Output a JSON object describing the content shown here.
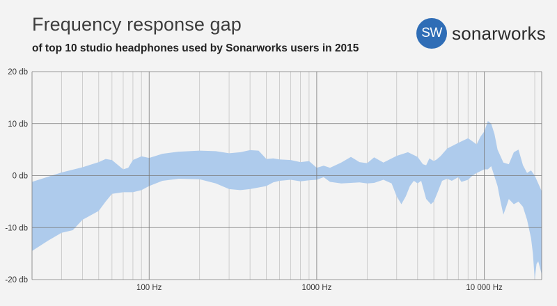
{
  "header": {
    "title": "Frequency response gap",
    "subtitle": "of top 10 studio headphones used by Sonarworks users in 2015"
  },
  "logo": {
    "badge_text": "SW",
    "wordmark": "sonarworks",
    "badge_color": "#2f6db6"
  },
  "chart_data": {
    "type": "area",
    "title": "Frequency response gap",
    "subtitle": "of top 10 studio headphones used by Sonarworks users in 2015",
    "xscale": "log",
    "xlim": [
      20,
      22000
    ],
    "ylim": [
      -20,
      20
    ],
    "grid": true,
    "fill_color": "#aecbec",
    "y_ticks": [
      {
        "value": 20,
        "label": "20 db"
      },
      {
        "value": 10,
        "label": "10 db"
      },
      {
        "value": 0,
        "label": "0 db"
      },
      {
        "value": -10,
        "label": "-10 db"
      },
      {
        "value": -20,
        "label": "-20 db"
      }
    ],
    "x_ticks": [
      {
        "value": 100,
        "label": "100 Hz"
      },
      {
        "value": 1000,
        "label": "1000 Hz"
      },
      {
        "value": 10000,
        "label": "10 000 Hz"
      }
    ],
    "series": [
      {
        "values_upper": [
          [
            20,
            -1.2
          ],
          [
            30,
            0.6
          ],
          [
            40,
            1.6
          ],
          [
            50,
            2.6
          ],
          [
            55,
            3.2
          ],
          [
            60,
            3.0
          ],
          [
            70,
            1.2
          ],
          [
            75,
            1.5
          ],
          [
            80,
            3.0
          ],
          [
            90,
            3.7
          ],
          [
            100,
            3.4
          ],
          [
            120,
            4.2
          ],
          [
            150,
            4.6
          ],
          [
            200,
            4.8
          ],
          [
            250,
            4.7
          ],
          [
            300,
            4.3
          ],
          [
            350,
            4.5
          ],
          [
            400,
            4.9
          ],
          [
            450,
            4.8
          ],
          [
            500,
            3.2
          ],
          [
            550,
            3.3
          ],
          [
            600,
            3.1
          ],
          [
            700,
            3.0
          ],
          [
            800,
            2.6
          ],
          [
            900,
            2.8
          ],
          [
            1000,
            1.5
          ],
          [
            1100,
            1.9
          ],
          [
            1200,
            1.5
          ],
          [
            1400,
            2.5
          ],
          [
            1600,
            3.6
          ],
          [
            1800,
            2.6
          ],
          [
            2000,
            2.4
          ],
          [
            2200,
            3.5
          ],
          [
            2500,
            2.5
          ],
          [
            3000,
            3.8
          ],
          [
            3500,
            4.5
          ],
          [
            4000,
            3.6
          ],
          [
            4300,
            2.2
          ],
          [
            4500,
            2.0
          ],
          [
            4700,
            3.3
          ],
          [
            5000,
            2.8
          ],
          [
            5200,
            3.1
          ],
          [
            5500,
            3.8
          ],
          [
            6000,
            5.2
          ],
          [
            7000,
            6.3
          ],
          [
            8000,
            7.2
          ],
          [
            9000,
            6.0
          ],
          [
            9500,
            7.5
          ],
          [
            10000,
            8.5
          ],
          [
            10500,
            10.5
          ],
          [
            11000,
            10.0
          ],
          [
            11500,
            8.0
          ],
          [
            12000,
            5.0
          ],
          [
            13000,
            2.5
          ],
          [
            14000,
            2.2
          ],
          [
            15000,
            4.5
          ],
          [
            16000,
            5.0
          ],
          [
            17000,
            2.0
          ],
          [
            18000,
            0.5
          ],
          [
            19000,
            1.0
          ],
          [
            20000,
            0.0
          ],
          [
            22000,
            -3.0
          ]
        ],
        "values_lower": [
          [
            20,
            -14.5
          ],
          [
            25,
            -12.5
          ],
          [
            30,
            -11.0
          ],
          [
            35,
            -10.5
          ],
          [
            40,
            -8.5
          ],
          [
            50,
            -6.8
          ],
          [
            55,
            -5.0
          ],
          [
            60,
            -3.5
          ],
          [
            70,
            -3.2
          ],
          [
            80,
            -3.2
          ],
          [
            90,
            -2.8
          ],
          [
            100,
            -2.0
          ],
          [
            120,
            -1.0
          ],
          [
            150,
            -0.6
          ],
          [
            200,
            -0.7
          ],
          [
            250,
            -1.5
          ],
          [
            300,
            -2.6
          ],
          [
            350,
            -2.8
          ],
          [
            400,
            -2.6
          ],
          [
            500,
            -2.0
          ],
          [
            550,
            -1.3
          ],
          [
            600,
            -1.0
          ],
          [
            700,
            -0.8
          ],
          [
            800,
            -1.1
          ],
          [
            900,
            -0.9
          ],
          [
            1000,
            -0.8
          ],
          [
            1100,
            -0.3
          ],
          [
            1200,
            -1.2
          ],
          [
            1400,
            -1.5
          ],
          [
            1600,
            -1.4
          ],
          [
            1800,
            -1.3
          ],
          [
            2000,
            -1.5
          ],
          [
            2200,
            -1.4
          ],
          [
            2500,
            -0.8
          ],
          [
            2800,
            -1.5
          ],
          [
            3000,
            -4.0
          ],
          [
            3200,
            -5.5
          ],
          [
            3400,
            -4.0
          ],
          [
            3600,
            -2.0
          ],
          [
            3800,
            -1.0
          ],
          [
            4000,
            -1.5
          ],
          [
            4200,
            -1.0
          ],
          [
            4500,
            -4.5
          ],
          [
            4800,
            -5.5
          ],
          [
            5000,
            -5.0
          ],
          [
            5300,
            -3.0
          ],
          [
            5600,
            -1.0
          ],
          [
            6000,
            -0.6
          ],
          [
            6400,
            -1.0
          ],
          [
            7000,
            -0.3
          ],
          [
            7300,
            -1.2
          ],
          [
            8000,
            -0.8
          ],
          [
            8500,
            0.0
          ],
          [
            9000,
            0.5
          ],
          [
            10000,
            1.2
          ],
          [
            10500,
            1.2
          ],
          [
            11000,
            1.8
          ],
          [
            12000,
            -2.0
          ],
          [
            12500,
            -5.0
          ],
          [
            13000,
            -7.5
          ],
          [
            13500,
            -6.0
          ],
          [
            14000,
            -4.5
          ],
          [
            15000,
            -5.5
          ],
          [
            16000,
            -5.0
          ],
          [
            17000,
            -6.0
          ],
          [
            18000,
            -8.5
          ],
          [
            19000,
            -12.0
          ],
          [
            19500,
            -15.0
          ],
          [
            20000,
            -20.0
          ],
          [
            20500,
            -17.0
          ],
          [
            21000,
            -16.5
          ],
          [
            22000,
            -19.0
          ]
        ]
      }
    ]
  }
}
